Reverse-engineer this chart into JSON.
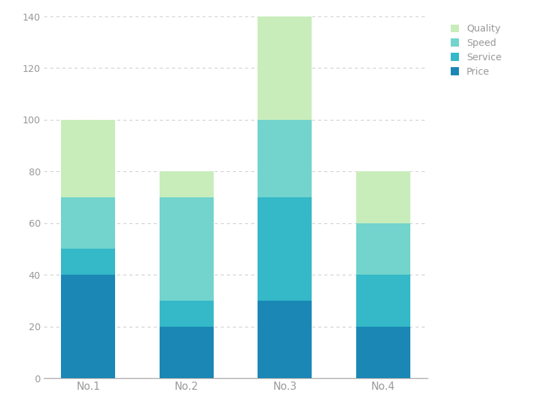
{
  "categories": [
    "No.1",
    "No.2",
    "No.3",
    "No.4"
  ],
  "series": {
    "Price": [
      40,
      20,
      30,
      20
    ],
    "Service": [
      10,
      10,
      40,
      20
    ],
    "Speed": [
      20,
      40,
      30,
      20
    ],
    "Quality": [
      30,
      10,
      40,
      20
    ]
  },
  "colors": {
    "Price": "#1a87b5",
    "Service": "#35b8c8",
    "Speed": "#72d4cc",
    "Quality": "#c8edbb"
  },
  "legend_order": [
    "Quality",
    "Speed",
    "Service",
    "Price"
  ],
  "ylim": [
    0,
    140
  ],
  "yticks": [
    0,
    20,
    40,
    60,
    80,
    100,
    120,
    140
  ],
  "background_color": "#ffffff",
  "grid_color": "#cccccc",
  "axis_color": "#aaaaaa",
  "tick_color": "#999999",
  "bar_width": 0.55,
  "title": ""
}
